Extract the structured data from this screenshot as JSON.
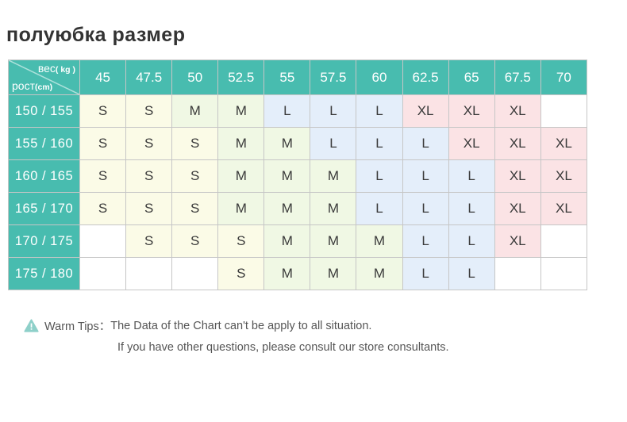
{
  "title": "полуюбка размер",
  "accent_color": "#48BCAF",
  "cell_colors": {
    "S": "#FBFBE7",
    "M": "#F0F8E4",
    "L": "#E4EEFA",
    "XL": "#FBE3E5",
    "empty": "#FFFFFF"
  },
  "chart_data": {
    "type": "table",
    "corner": {
      "weight_label": "вес",
      "weight_unit": "( kg )",
      "height_label": "рост",
      "height_unit": "(cm)"
    },
    "columns": [
      "45",
      "47.5",
      "50",
      "52.5",
      "55",
      "57.5",
      "60",
      "62.5",
      "65",
      "67.5",
      "70"
    ],
    "rows": [
      {
        "label": "150 / 155",
        "cells": [
          "S",
          "S",
          "M",
          "M",
          "L",
          "L",
          "L",
          "XL",
          "XL",
          "XL",
          ""
        ]
      },
      {
        "label": "155 / 160",
        "cells": [
          "S",
          "S",
          "S",
          "M",
          "M",
          "L",
          "L",
          "L",
          "XL",
          "XL",
          "XL"
        ]
      },
      {
        "label": "160 / 165",
        "cells": [
          "S",
          "S",
          "S",
          "M",
          "M",
          "M",
          "L",
          "L",
          "L",
          "XL",
          "XL"
        ]
      },
      {
        "label": "165 / 170",
        "cells": [
          "S",
          "S",
          "S",
          "M",
          "M",
          "M",
          "L",
          "L",
          "L",
          "XL",
          "XL"
        ]
      },
      {
        "label": "170 / 175",
        "cells": [
          "",
          "S",
          "S",
          "S",
          "M",
          "M",
          "M",
          "L",
          "L",
          "XL",
          ""
        ]
      },
      {
        "label": "175 / 180",
        "cells": [
          "",
          "",
          "",
          "S",
          "M",
          "M",
          "M",
          "L",
          "L",
          "",
          ""
        ]
      }
    ]
  },
  "footer": {
    "warning_icon": "triangle-exclamation-icon",
    "line1_prefix": "Warm Tips：",
    "line1_text": "The Data of the Chart can't be apply to all situation.",
    "line2_text": "If you have other questions, please consult our store consultants."
  }
}
